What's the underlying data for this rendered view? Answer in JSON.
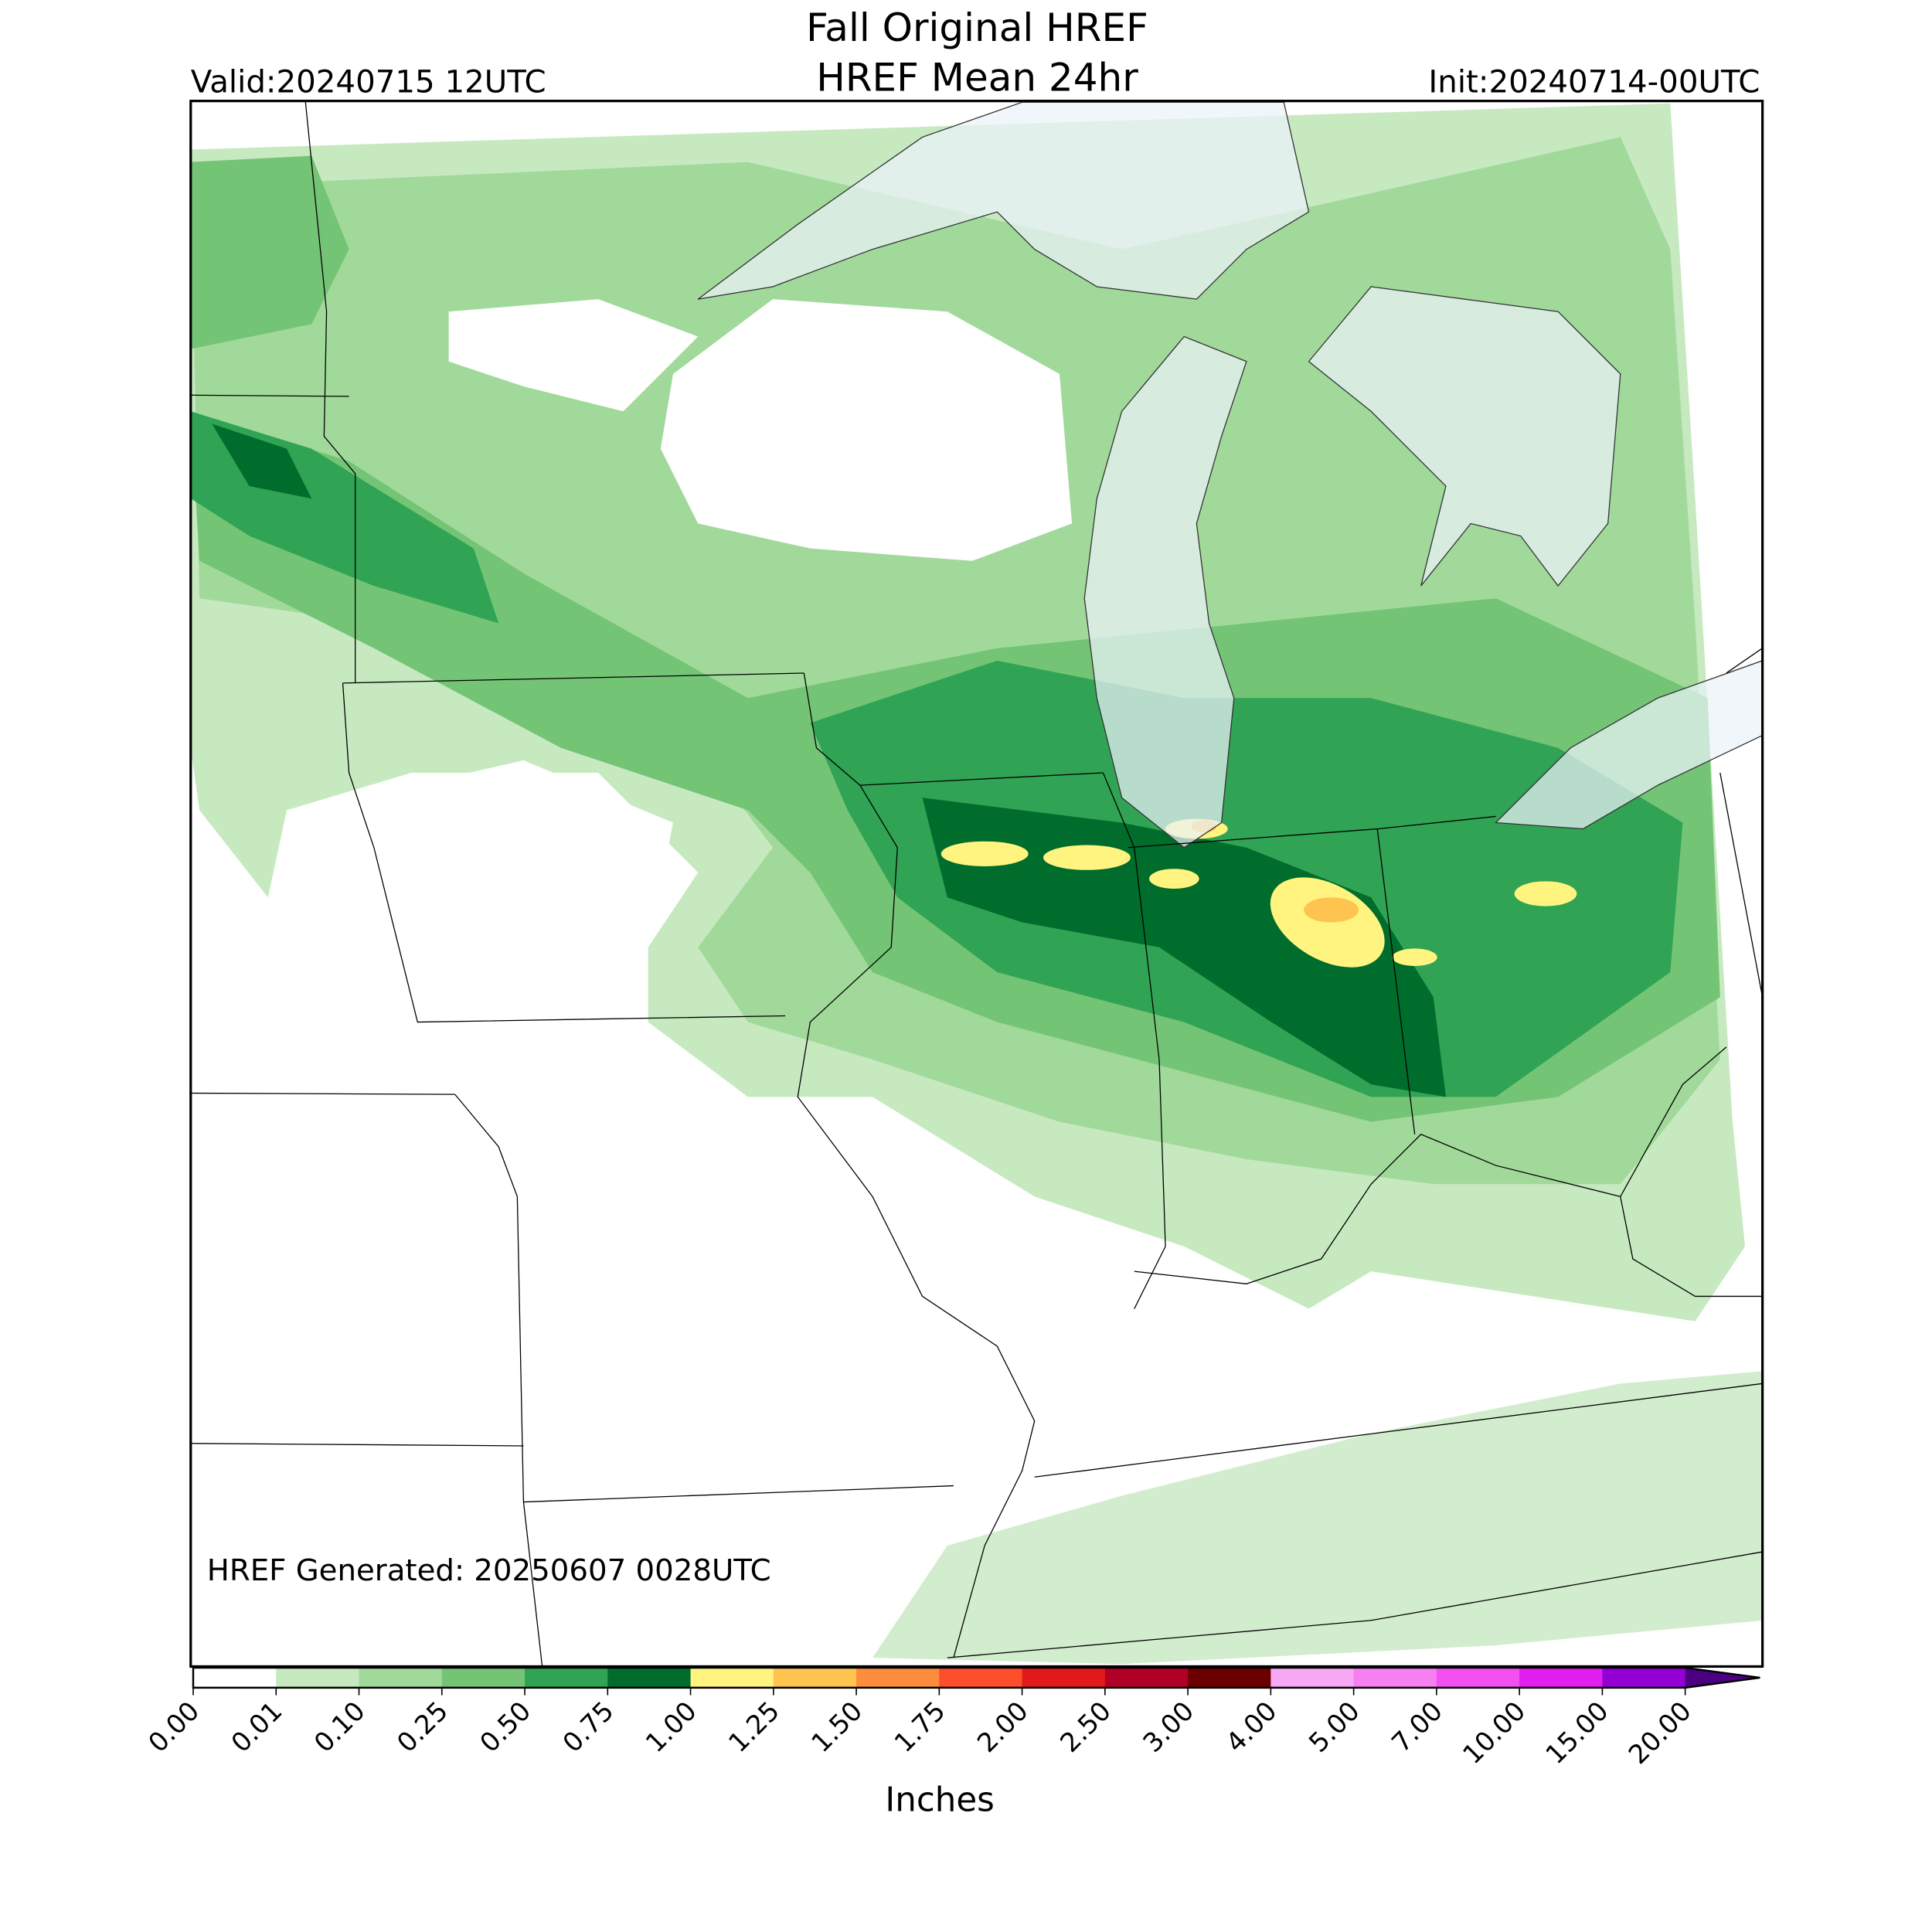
{
  "header": {
    "title": "Fall Original HREF",
    "subtitle": "HREF Mean 24hr",
    "valid": "Valid:20240715 12UTC",
    "init": "Init:20240714-00UTC"
  },
  "map": {
    "footer": "HREF Generated: 20250607 0028UTC"
  },
  "colorbar": {
    "label": "Inches",
    "ticks": [
      "0.00",
      "0.01",
      "0.10",
      "0.25",
      "0.50",
      "0.75",
      "1.00",
      "1.25",
      "1.50",
      "1.75",
      "2.00",
      "2.50",
      "3.00",
      "4.00",
      "5.00",
      "7.00",
      "10.00",
      "15.00",
      "20.00"
    ],
    "colors": [
      "#ffffff",
      "#c7e9c0",
      "#a1d99b",
      "#74c476",
      "#31a354",
      "#006d2c",
      "#fff480",
      "#fec44f",
      "#fd8d3c",
      "#fc4e2a",
      "#e31a1c",
      "#b10026",
      "#6b0000",
      "#f7a8f5",
      "#f67ff2",
      "#f44ff0",
      "#e11ef0",
      "#9400d3"
    ],
    "extend_color": "#4b0082"
  }
}
